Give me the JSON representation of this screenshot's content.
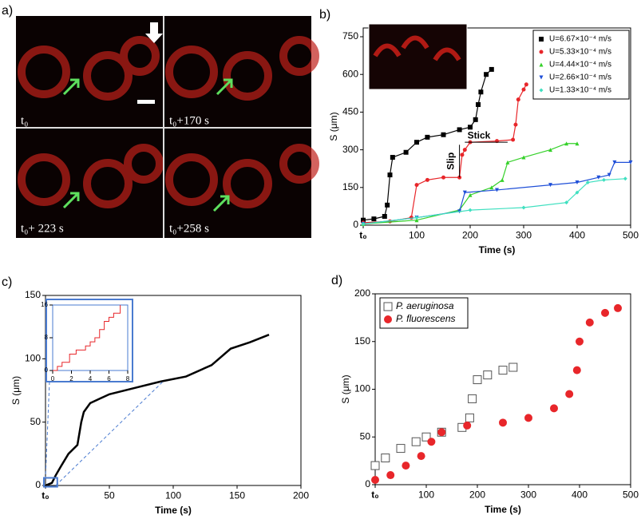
{
  "panel_a": {
    "label": "a)",
    "frames": [
      "t₀",
      "t₀+170 s",
      "t₀+ 223 s",
      "t₀+258 s"
    ]
  },
  "chart_data": [
    {
      "type": "line",
      "label": "b)",
      "xlabel": "Time (s)",
      "ylabel": "S (μm)",
      "xlim": [
        0,
        500
      ],
      "ylim": [
        0,
        785
      ],
      "xticks": [
        {
          "value": 0,
          "label": "t₀"
        },
        100,
        200,
        300,
        400,
        500
      ],
      "yticks": [
        0,
        150,
        300,
        450,
        600,
        750
      ],
      "annotations": [
        "Stick",
        "Slip"
      ],
      "series": [
        {
          "name": "U=6.67×10⁻⁴ m/s",
          "color": "#000000",
          "marker": "square",
          "x": [
            0,
            20,
            40,
            45,
            50,
            55,
            80,
            100,
            120,
            150,
            180,
            200,
            210,
            215,
            220,
            230,
            240
          ],
          "values": [
            20,
            25,
            35,
            80,
            200,
            270,
            290,
            330,
            350,
            360,
            380,
            390,
            420,
            480,
            530,
            600,
            620
          ]
        },
        {
          "name": "U=5.33×10⁻⁴ m/s",
          "color": "#e8262a",
          "marker": "circle",
          "x": [
            0,
            50,
            90,
            100,
            120,
            150,
            180,
            185,
            190,
            200,
            250,
            280,
            285,
            290,
            300,
            305
          ],
          "values": [
            10,
            15,
            30,
            160,
            180,
            190,
            190,
            280,
            300,
            330,
            335,
            340,
            400,
            500,
            540,
            560
          ]
        },
        {
          "name": "U=4.44×10⁻⁴ m/s",
          "color": "#35d12a",
          "marker": "triangle",
          "x": [
            0,
            100,
            180,
            200,
            240,
            260,
            270,
            300,
            350,
            380,
            400
          ],
          "values": [
            5,
            20,
            60,
            120,
            150,
            180,
            250,
            270,
            300,
            325,
            325
          ]
        },
        {
          "name": "U=2.66×10⁻⁴ m/s",
          "color": "#1f4fd8",
          "marker": "triangle-down",
          "x": [
            0,
            100,
            180,
            190,
            250,
            350,
            400,
            440,
            460,
            470,
            500
          ],
          "values": [
            5,
            30,
            55,
            130,
            140,
            160,
            170,
            190,
            200,
            250,
            250
          ]
        },
        {
          "name": "U=1.33×10⁻⁴ m/s",
          "color": "#40e0c0",
          "marker": "diamond",
          "x": [
            0,
            100,
            200,
            300,
            380,
            400,
            420,
            450,
            490
          ],
          "values": [
            5,
            30,
            60,
            70,
            90,
            130,
            170,
            180,
            185
          ]
        }
      ]
    },
    {
      "type": "line",
      "label": "c)",
      "xlabel": "Time (s)",
      "ylabel": "S (μm)",
      "xlim": [
        0,
        200
      ],
      "ylim": [
        0,
        150
      ],
      "xticks": [
        {
          "value": 0,
          "label": "t₀"
        },
        50,
        100,
        150,
        200
      ],
      "yticks": [
        0,
        50,
        100,
        150
      ],
      "series": [
        {
          "color": "#000000",
          "x": [
            0,
            5,
            8,
            12,
            18,
            25,
            28,
            30,
            35,
            50,
            70,
            90,
            110,
            130,
            145,
            160,
            175
          ],
          "values": [
            0,
            2,
            8,
            15,
            25,
            32,
            50,
            58,
            65,
            72,
            77,
            82,
            86,
            95,
            108,
            113,
            119
          ]
        }
      ],
      "inset": {
        "xlim": [
          0,
          8
        ],
        "ylim": [
          0,
          16
        ],
        "xticks": [
          0,
          2,
          4,
          6,
          8
        ],
        "yticks": [
          0,
          8,
          16
        ],
        "color": "#e8262a",
        "x": [
          0,
          0.5,
          0.5,
          1,
          1,
          1.8,
          1.8,
          2.5,
          2.5,
          3.5,
          3.5,
          4,
          4,
          4.5,
          4.5,
          5,
          5,
          5.5,
          5.5,
          6,
          6,
          6.5,
          6.5,
          7.2,
          7.2
        ],
        "values": [
          0,
          0,
          1,
          1,
          2,
          2,
          4,
          4,
          5,
          5,
          6,
          6,
          7,
          7,
          8,
          8,
          10,
          10,
          12,
          12,
          13,
          13,
          14,
          14,
          16
        ]
      }
    },
    {
      "type": "scatter",
      "label": "d)",
      "xlabel": "Time (s)",
      "ylabel": "S (μm)",
      "xlim": [
        0,
        500
      ],
      "ylim": [
        0,
        200
      ],
      "xticks": [
        {
          "value": 0,
          "label": "t₀"
        },
        100,
        200,
        300,
        400,
        500
      ],
      "yticks": [
        0,
        50,
        100,
        150,
        200
      ],
      "series": [
        {
          "name": "P. aeruginosa",
          "color": "#555555",
          "marker": "open-square",
          "x": [
            0,
            20,
            50,
            80,
            100,
            130,
            170,
            185,
            190,
            200,
            220,
            250,
            270
          ],
          "values": [
            20,
            28,
            38,
            45,
            50,
            55,
            60,
            70,
            90,
            110,
            115,
            120,
            123
          ]
        },
        {
          "name": "P. fluorescens",
          "color": "#e8262a",
          "marker": "circle",
          "x": [
            0,
            30,
            60,
            90,
            110,
            130,
            180,
            250,
            300,
            350,
            380,
            395,
            400,
            420,
            450,
            475
          ],
          "values": [
            5,
            10,
            20,
            30,
            45,
            55,
            62,
            65,
            70,
            80,
            95,
            120,
            150,
            170,
            180,
            185
          ]
        }
      ]
    }
  ]
}
